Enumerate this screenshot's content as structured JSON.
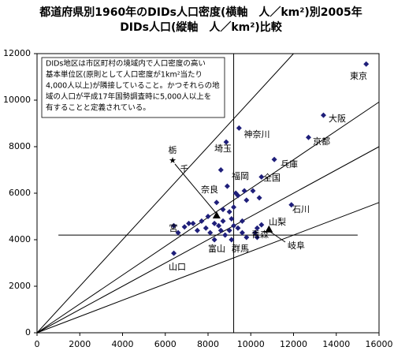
{
  "chart_data": {
    "type": "scatter",
    "title": [
      "都道府県別1960年のDIDs人口密度(横軸　人／km²)別2005年",
      "DIDs人口(縦軸　人／km²)比較"
    ],
    "note": [
      "DIDs地区は市区町村の境域内で人口密度の高い",
      "基本単位区(原則として人口密度が1km²当たり",
      "4,000人以上)が隣接していること。かつそれらの地",
      "域の人口が平成17年国勢調査時に5,000人以上を",
      "有することと定義されている。"
    ],
    "series": [
      {
        "color": "#1f1f7a",
        "marker": "diamond",
        "x": [
          15400,
          13400,
          12700,
          11100,
          9450,
          8850,
          10500,
          11900,
          8600,
          8900,
          9300,
          9400,
          9700,
          10100,
          10400,
          9800,
          9200,
          9000,
          8700,
          8400,
          8000,
          7700,
          7300,
          6900,
          7100,
          6600,
          6400,
          7500,
          7900,
          8100,
          8300,
          8500,
          8600,
          8800,
          9000,
          9200,
          9400,
          9600,
          9800,
          10200,
          10300,
          10500,
          10300,
          9600,
          9100,
          8700,
          8300,
          9100,
          6400
        ],
        "y": [
          11550,
          9350,
          8400,
          7450,
          8800,
          8200,
          6700,
          5500,
          7000,
          6300,
          6000,
          5900,
          6100,
          6100,
          5800,
          5700,
          5400,
          5200,
          5300,
          5600,
          5000,
          4800,
          4700,
          4550,
          4700,
          4300,
          4600,
          4400,
          4500,
          4300,
          4700,
          4600,
          4400,
          4200,
          4400,
          4600,
          4500,
          4300,
          4100,
          4300,
          4500,
          4640,
          4100,
          4800,
          4900,
          4800,
          4000,
          4000,
          3420
        ]
      },
      {
        "color": "#000000",
        "marker": "triangle",
        "x": [
          10850,
          8400
        ],
        "y": [
          4450,
          5050
        ]
      }
    ],
    "annotations": [
      "東京",
      "大阪",
      "京都",
      "兵庫",
      "神奈川",
      "埼玉",
      "全国",
      "石川",
      "福岡",
      "山梨",
      "青森",
      "岐阜",
      "群馬",
      "富山",
      "山口",
      "宮",
      "奈良",
      "千",
      "栃",
      "★"
    ],
    "reference_slopes": [
      1.0,
      0.62,
      0.5,
      0.35
    ],
    "hline": 4200,
    "vline": 9200,
    "xlim": [
      0,
      16000
    ],
    "xticks": [
      0,
      2000,
      4000,
      6000,
      8000,
      10000,
      12000,
      14000,
      16000
    ],
    "ylim": [
      0,
      12000
    ],
    "yticks": [
      0,
      2000,
      4000,
      6000,
      8000,
      10000,
      12000
    ],
    "grid": false
  }
}
